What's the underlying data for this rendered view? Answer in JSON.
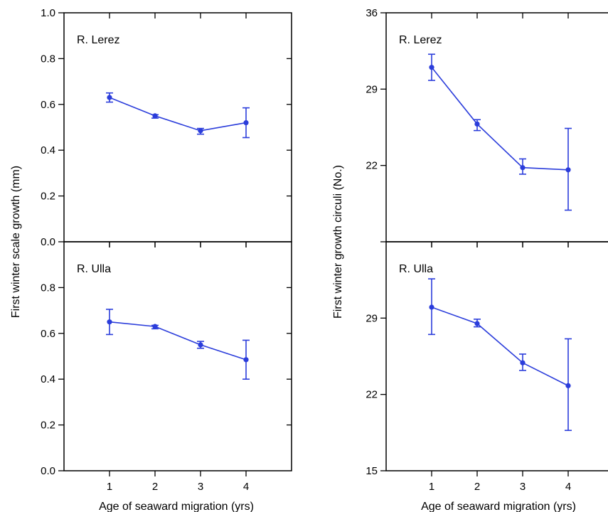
{
  "colors": {
    "series": "#2b3ddb",
    "axis": "#000000",
    "background": "#ffffff"
  },
  "left_figure": {
    "ylabel": "First winter scale growth (mm)",
    "xlabel": "Age of seaward migration (yrs)"
  },
  "right_figure": {
    "ylabel": "First winter growth circuli (No.)",
    "xlabel": "Age of seaward migration (yrs)"
  },
  "chart_data": [
    {
      "type": "line",
      "panel": "left-top",
      "label": "R. Lerez",
      "x": [
        1,
        2,
        3,
        4
      ],
      "y": [
        0.63,
        0.55,
        0.485,
        0.52
      ],
      "err_low": [
        0.61,
        0.54,
        0.47,
        0.455
      ],
      "err_high": [
        0.65,
        0.555,
        0.495,
        0.585
      ],
      "xlim": [
        0,
        5
      ],
      "ylim": [
        0,
        1
      ],
      "yticks": [
        0.0,
        0.2,
        0.4,
        0.6,
        0.8,
        1.0
      ],
      "ytick_labels": [
        "0.0",
        "0.2",
        "0.4",
        "0.6",
        "0.8",
        "1.0"
      ],
      "xticks": [
        1,
        2,
        3,
        4
      ],
      "xtick_labels": [],
      "grid": false,
      "error_bars": true
    },
    {
      "type": "line",
      "panel": "left-bottom",
      "label": "R. Ulla",
      "x": [
        1,
        2,
        3,
        4
      ],
      "y": [
        0.65,
        0.63,
        0.55,
        0.485
      ],
      "err_low": [
        0.595,
        0.62,
        0.535,
        0.4
      ],
      "err_high": [
        0.705,
        0.635,
        0.565,
        0.57
      ],
      "xlim": [
        0,
        5
      ],
      "ylim": [
        0,
        1
      ],
      "yticks": [
        0.0,
        0.2,
        0.4,
        0.6,
        0.8
      ],
      "ytick_labels": [
        "0.0",
        "0.2",
        "0.4",
        "0.6",
        "0.8"
      ],
      "xticks": [
        1,
        2,
        3,
        4
      ],
      "xtick_labels": [
        "1",
        "2",
        "3",
        "4"
      ],
      "grid": false,
      "error_bars": true
    },
    {
      "type": "line",
      "panel": "right-top",
      "label": "R. Lerez",
      "x": [
        1,
        2,
        3,
        4
      ],
      "y": [
        31,
        25.8,
        21.8,
        21.6
      ],
      "err_low": [
        29.8,
        25.2,
        21.2,
        17.9
      ],
      "err_high": [
        32.2,
        26.2,
        22.6,
        25.4
      ],
      "xlim": [
        0,
        5
      ],
      "ylim": [
        15,
        36
      ],
      "yticks": [
        15,
        22,
        29,
        36
      ],
      "ytick_labels": [
        "",
        "22",
        "29",
        "36"
      ],
      "xticks": [
        1,
        2,
        3,
        4
      ],
      "xtick_labels": [],
      "grid": false,
      "error_bars": true
    },
    {
      "type": "line",
      "panel": "right-bottom",
      "label": "R. Ulla",
      "x": [
        1,
        2,
        3,
        4
      ],
      "y": [
        30,
        28.5,
        24.9,
        22.8
      ],
      "err_low": [
        27.5,
        28.2,
        24.2,
        18.7
      ],
      "err_high": [
        32.6,
        28.9,
        25.7,
        27.1
      ],
      "xlim": [
        0,
        5
      ],
      "ylim": [
        15,
        36
      ],
      "yticks": [
        15,
        22,
        29
      ],
      "ytick_labels": [
        "15",
        "22",
        "29"
      ],
      "xticks": [
        1,
        2,
        3,
        4
      ],
      "xtick_labels": [
        "1",
        "2",
        "3",
        "4"
      ],
      "grid": false,
      "error_bars": true
    }
  ]
}
